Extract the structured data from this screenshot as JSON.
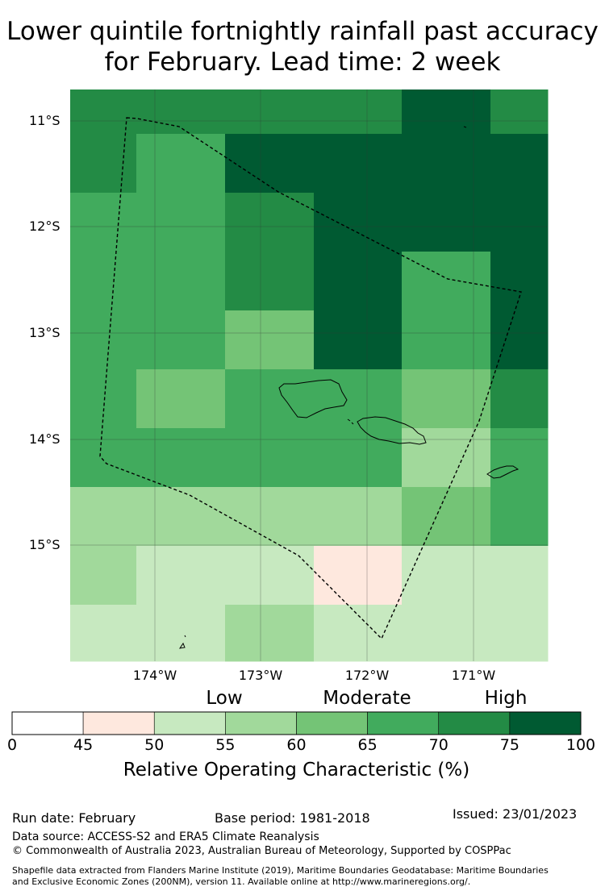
{
  "title": {
    "line1": "Lower quintile fortnightly rainfall past accuracy",
    "line2": "for February. Lead time: 2 week"
  },
  "map": {
    "lat_labels": [
      "11°S",
      "12°S",
      "13°S",
      "14°S",
      "15°S"
    ],
    "lon_labels": [
      "174°W",
      "173°W",
      "172°W",
      "171°W"
    ],
    "grid_values": [
      [
        70,
        70,
        70,
        70,
        75,
        70
      ],
      [
        70,
        65,
        75,
        75,
        75,
        75
      ],
      [
        65,
        65,
        70,
        75,
        75,
        75
      ],
      [
        65,
        65,
        70,
        75,
        65,
        75
      ],
      [
        65,
        65,
        60,
        75,
        65,
        75
      ],
      [
        65,
        60,
        65,
        65,
        60,
        70
      ],
      [
        65,
        65,
        65,
        65,
        55,
        65
      ],
      [
        55,
        55,
        55,
        55,
        60,
        65
      ],
      [
        55,
        50,
        50,
        45,
        50,
        50
      ],
      [
        50,
        50,
        55,
        50,
        50,
        50
      ]
    ]
  },
  "legend": {
    "category_labels": [
      "Low",
      "Moderate",
      "High"
    ],
    "ticks": [
      "0",
      "45",
      "50",
      "55",
      "60",
      "65",
      "70",
      "75",
      "100"
    ],
    "colors": [
      "#ffffff",
      "#fee8de",
      "#c7e9c0",
      "#a1d99b",
      "#74c476",
      "#41ab5d",
      "#238b45",
      "#005a32"
    ],
    "title": "Relative Operating Characteristic (%)"
  },
  "footer": {
    "run_date": "Run date: February",
    "base_period": "Base period: 1981-2018",
    "issued": "Issued: 23/01/2023",
    "data_source": "Data source: ACCESS-S2 and ERA5 Climate Reanalysis",
    "copyright": "© Commonwealth of Australia 2023, Australian Bureau of Meteorology, Supported by COSPPac",
    "shapefile_line1": "Shapefile data extracted from Flanders Marine Institute (2019), Maritime Boundaries Geodatabase: Maritime Boundaries",
    "shapefile_line2": "and Exclusive Economic Zones (200NM), version 11. Available online at http://www.marineregions.org/."
  }
}
